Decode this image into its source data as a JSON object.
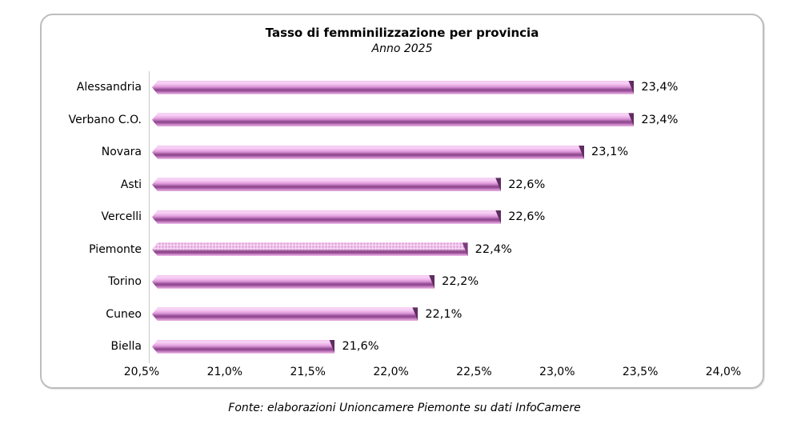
{
  "chart_data": {
    "type": "bar",
    "orientation": "horizontal",
    "title": "Tasso di femminilizzazione per provincia",
    "subtitle": "Anno 2025",
    "categories": [
      "Alessandria",
      "Verbano C.O.",
      "Novara",
      "Asti",
      "Vercelli",
      "Piemonte",
      "Torino",
      "Cuneo",
      "Biella"
    ],
    "values": [
      23.4,
      23.4,
      23.1,
      22.6,
      22.6,
      22.4,
      22.2,
      22.1,
      21.6
    ],
    "value_labels": [
      "23,4%",
      "23,4%",
      "23,1%",
      "22,6%",
      "22,6%",
      "22,4%",
      "22,2%",
      "22,1%",
      "21,6%"
    ],
    "xlim": [
      20.5,
      24.0
    ],
    "tick_step": 0.5,
    "tick_labels": [
      "20,5%",
      "21,0%",
      "21,5%",
      "22,0%",
      "22,5%",
      "23,0%",
      "23,5%",
      "24,0%"
    ],
    "highlight_category": "Piemonte",
    "bar_color": "#e39ddf",
    "bar_dark_color": "#8f4490",
    "grid": false,
    "legend": false
  },
  "footer": {
    "text": "Fonte: elaborazioni Unioncamere Piemonte su dati InfoCamere"
  }
}
